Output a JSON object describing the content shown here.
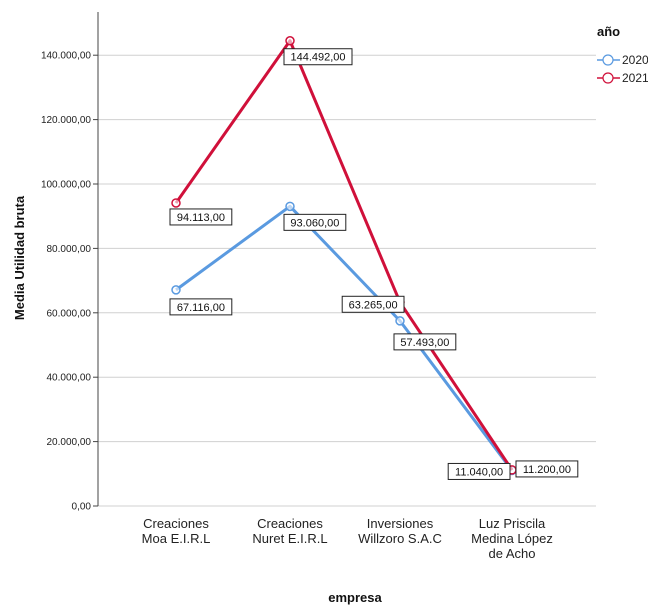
{
  "chart_data": {
    "type": "line",
    "title": "",
    "xlabel": "empresa",
    "ylabel": "Media Utilidad bruta",
    "ylim": [
      0,
      150000
    ],
    "yticks": [
      0,
      20000,
      40000,
      60000,
      80000,
      100000,
      120000,
      140000
    ],
    "ytick_labels": [
      "0,00",
      "20.000,00",
      "40.000,00",
      "60.000,00",
      "80.000,00",
      "100.000,00",
      "120.000,00",
      "140.000,00"
    ],
    "grid": true,
    "legend_title": "año",
    "legend_position": "top-right",
    "categories": [
      [
        "Creaciones",
        "Moa E.I.R.L"
      ],
      [
        "Creaciones",
        "Nuret E.I.R.L"
      ],
      [
        "Inversiones",
        "Willzoro S.A.C"
      ],
      [
        "Luz Priscila",
        "Medina López",
        "de Acho"
      ]
    ],
    "series": [
      {
        "name": "2020",
        "color": "#5a9ae0",
        "values": [
          67116,
          93060,
          57493,
          11040
        ],
        "labels": [
          "67.116,00",
          "93.060,00",
          "57.493,00",
          "11.040,00"
        ]
      },
      {
        "name": "2021",
        "color": "#d0103a",
        "values": [
          94113,
          144492,
          63265,
          11200
        ],
        "labels": [
          "94.113,00",
          "144.492,00",
          "63.265,00",
          "11.200,00"
        ]
      }
    ]
  }
}
